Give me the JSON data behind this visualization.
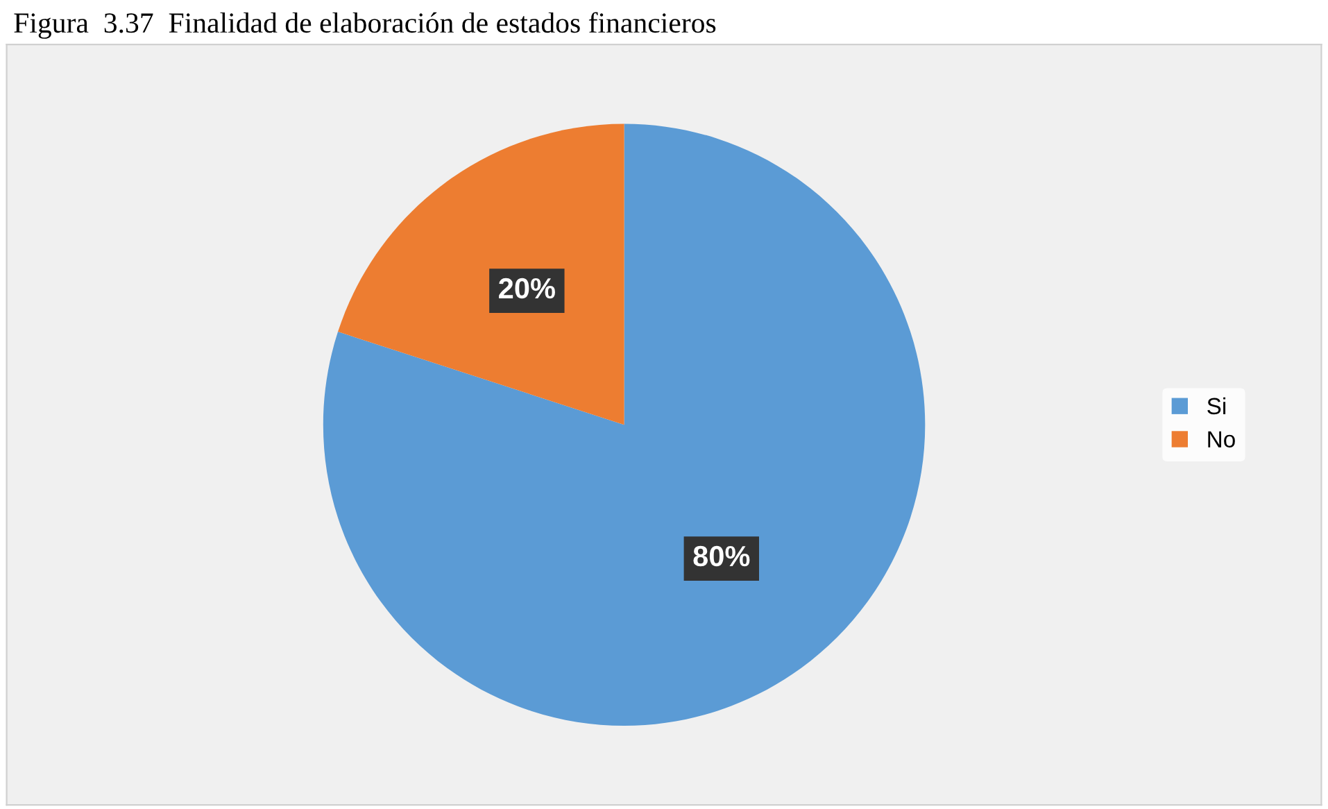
{
  "chart_data": {
    "type": "pie",
    "title": "Figura  3.37  Finalidad de elaboración de estados financieros",
    "categories": [
      "Si",
      "No"
    ],
    "values": [
      80,
      20
    ],
    "colors": [
      "#5b9bd5",
      "#ed7d31"
    ],
    "value_labels": [
      "80%",
      "20%"
    ],
    "legend": "right"
  }
}
